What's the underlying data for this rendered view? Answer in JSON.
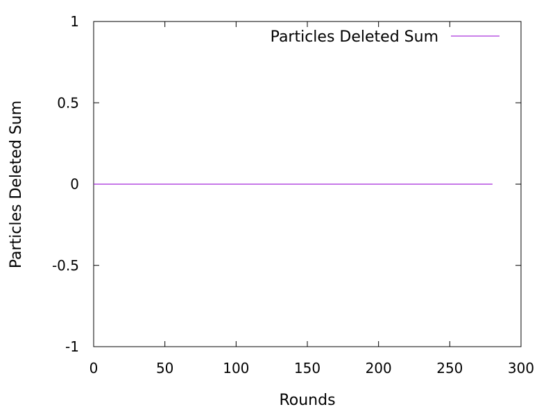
{
  "chart_data": {
    "type": "line",
    "title": "",
    "xlabel": "Rounds",
    "ylabel": "Particles Deleted Sum",
    "xlim": [
      0,
      300
    ],
    "ylim": [
      -1,
      1
    ],
    "xticks": [
      0,
      50,
      100,
      150,
      200,
      250,
      300
    ],
    "yticks": [
      -1,
      -0.5,
      0,
      0.5,
      1
    ],
    "xtick_labels": [
      "0",
      "50",
      "100",
      "150",
      "200",
      "250",
      "300"
    ],
    "ytick_labels": [
      "-1",
      "-0.5",
      "0",
      "0.5",
      "1"
    ],
    "grid": false,
    "legend_position": "top-right",
    "series": [
      {
        "name": "Particles Deleted Sum",
        "color": "#9400d3",
        "x": [
          0,
          280
        ],
        "y": [
          0,
          0
        ]
      }
    ]
  }
}
